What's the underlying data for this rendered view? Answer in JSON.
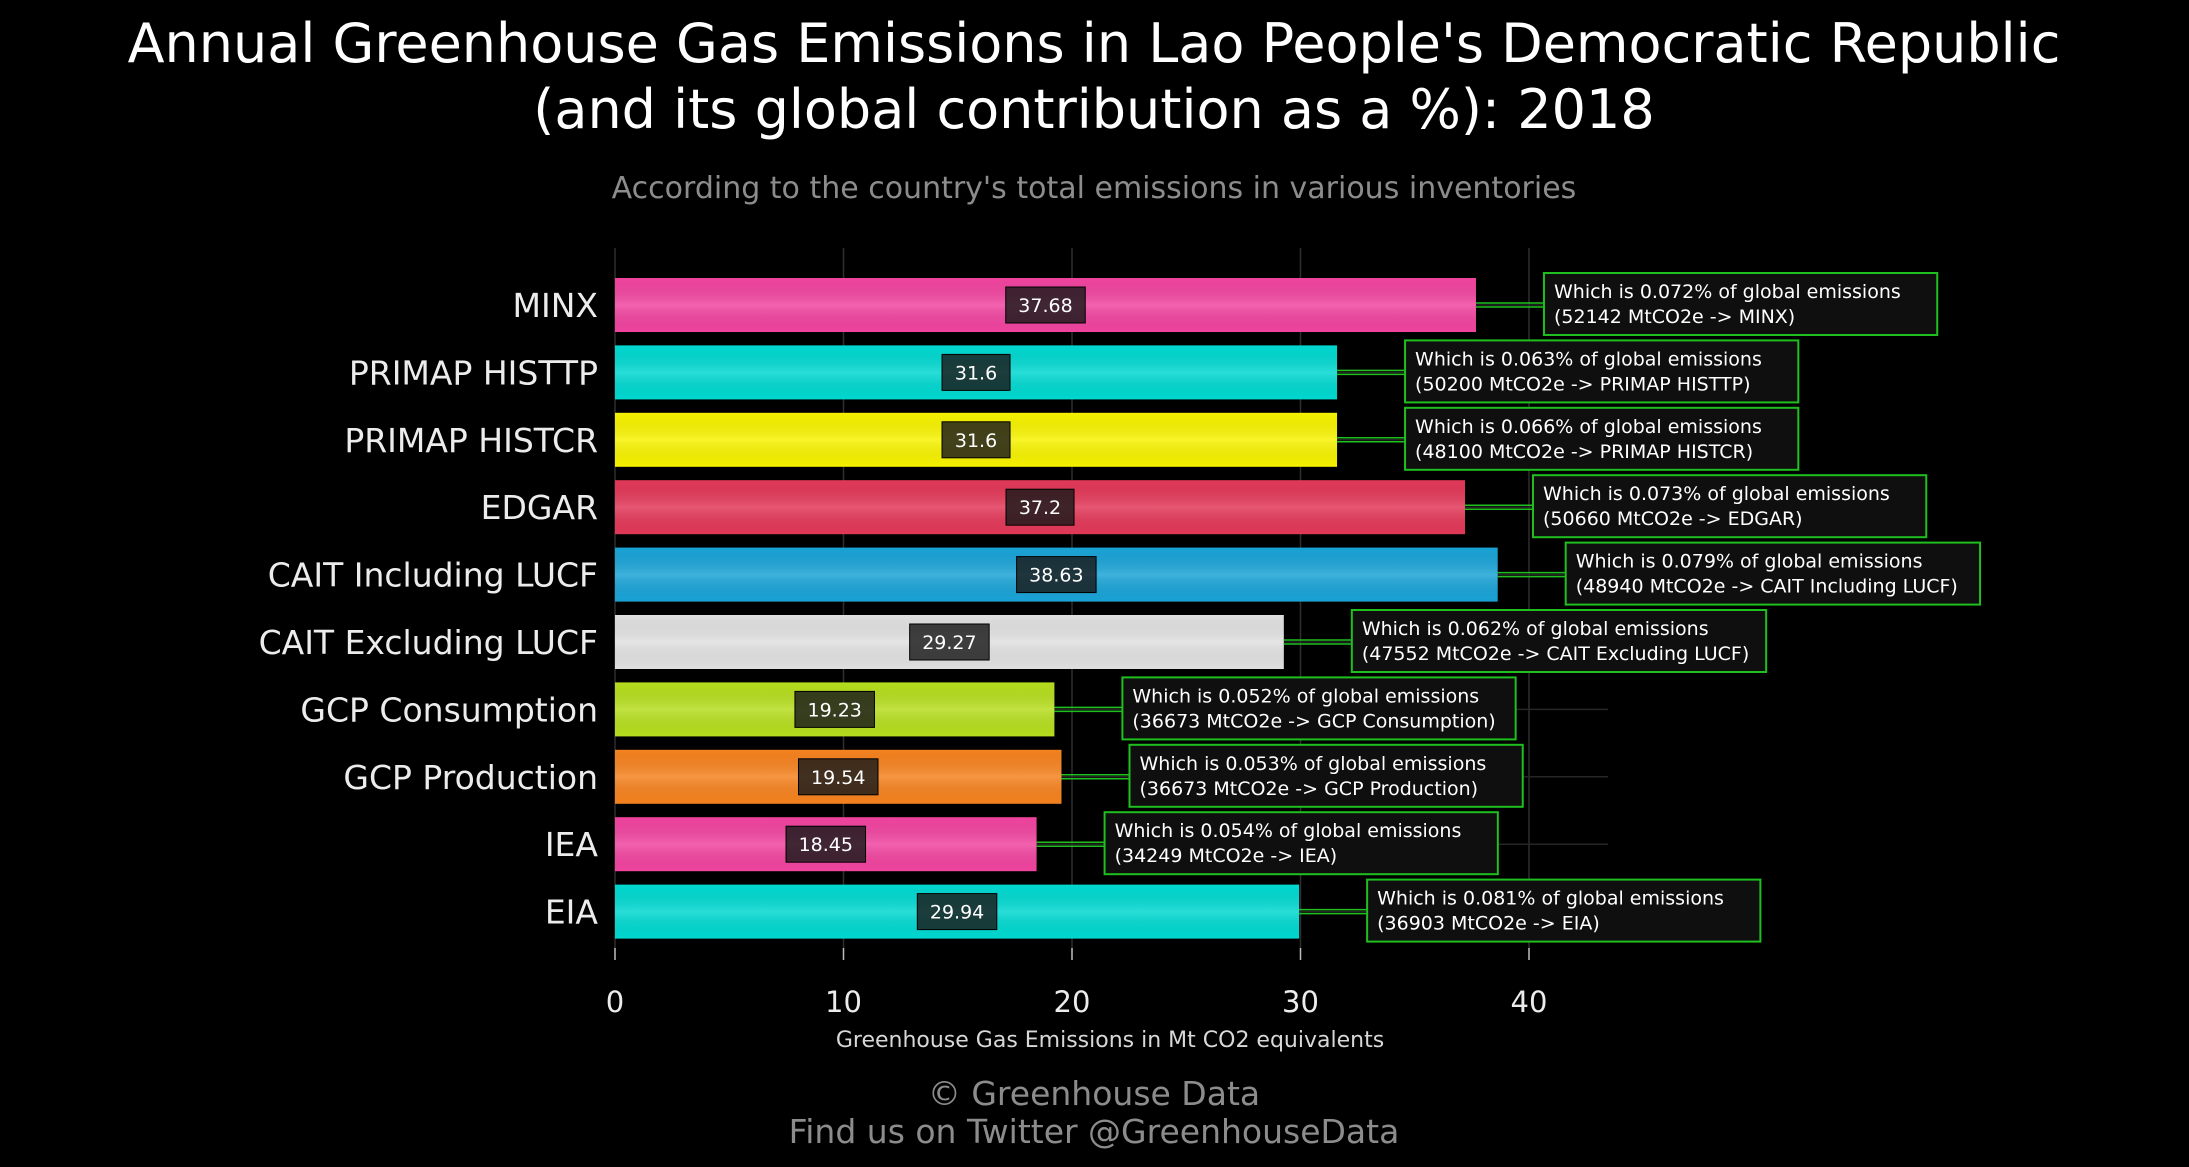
{
  "chart_data": {
    "type": "bar",
    "orientation": "horizontal",
    "title": "Annual Greenhouse Gas Emissions in Lao People's Democratic Republic",
    "title_line2": "(and its global contribution as a %): 2018",
    "subtitle": "According to the country's total emissions in various inventories",
    "xlabel": "Greenhouse Gas Emissions in Mt CO2 equivalents",
    "ylabel": "",
    "xlim": [
      0,
      47
    ],
    "xticks": [
      0,
      10,
      20,
      30,
      40
    ],
    "grid": true,
    "categories": [
      "MINX",
      "PRIMAP HISTTP",
      "PRIMAP HISTCR",
      "EDGAR",
      "CAIT Including LUCF",
      "CAIT Excluding LUCF",
      "GCP Consumption",
      "GCP Production",
      "IEA",
      "EIA"
    ],
    "values": [
      37.68,
      31.6,
      31.6,
      37.2,
      38.63,
      29.27,
      19.23,
      19.54,
      18.45,
      29.94
    ],
    "value_labels": [
      "37.68",
      "31.6",
      "31.6",
      "37.2",
      "38.63",
      "29.27",
      "19.23",
      "19.54",
      "18.45",
      "29.94"
    ],
    "colors": [
      "#f0449f",
      "#00d8d0",
      "#f6f200",
      "#e23858",
      "#1aa3d6",
      "#e0e0e0",
      "#b6dd1e",
      "#f5821f",
      "#f0449f",
      "#00d8d0"
    ],
    "annotations": [
      {
        "line1": "Which is 0.072% of global emissions",
        "line2": "(52142 MtCO2e -> MINX)"
      },
      {
        "line1": "Which is 0.063% of global emissions",
        "line2": "(50200 MtCO2e -> PRIMAP HISTTP)"
      },
      {
        "line1": "Which is 0.066% of global emissions",
        "line2": "(48100 MtCO2e -> PRIMAP HISTCR)"
      },
      {
        "line1": "Which is 0.073% of global emissions",
        "line2": "(50660 MtCO2e -> EDGAR)"
      },
      {
        "line1": "Which is 0.079% of global emissions",
        "line2": "(48940 MtCO2e -> CAIT Including LUCF)"
      },
      {
        "line1": "Which is 0.062% of global emissions",
        "line2": "(47552 MtCO2e -> CAIT Excluding LUCF)"
      },
      {
        "line1": "Which is 0.052% of global emissions",
        "line2": "(36673 MtCO2e -> GCP Consumption)"
      },
      {
        "line1": "Which is 0.053% of global emissions",
        "line2": "(36673 MtCO2e -> GCP Production)"
      },
      {
        "line1": "Which is 0.054% of global emissions",
        "line2": "(34249 MtCO2e -> IEA)"
      },
      {
        "line1": "Which is 0.081% of global emissions",
        "line2": "(36903 MtCO2e -> EIA)"
      }
    ],
    "annotation_color": "#1fbf1f",
    "background": "#000000"
  },
  "footer": {
    "line1": "© Greenhouse Data",
    "line2": "Find us on Twitter @GreenhouseData"
  }
}
